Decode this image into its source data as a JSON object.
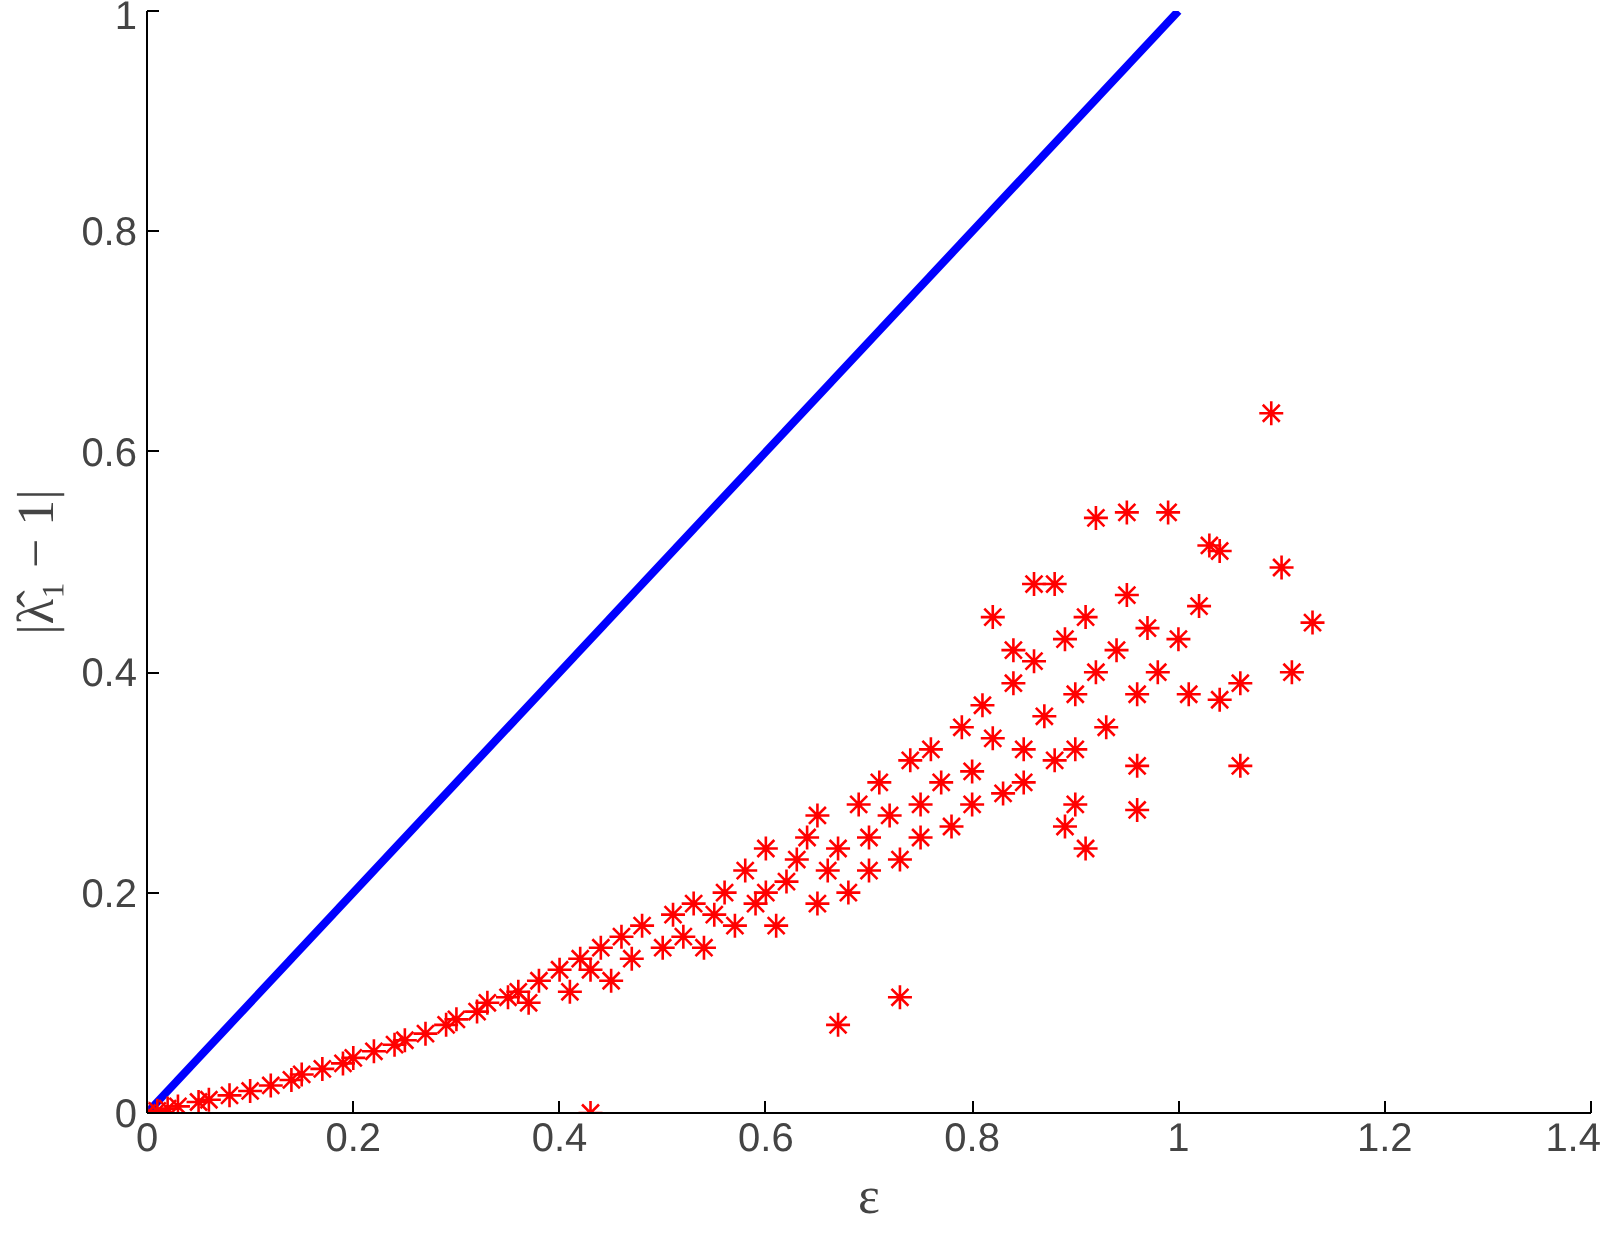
{
  "chart_data": {
    "type": "scatter",
    "xlabel": "ε",
    "ylabel": "|λ̂₁ − 1|",
    "xlim": [
      0,
      1.4
    ],
    "ylim": [
      0,
      1
    ],
    "xticks": [
      0,
      0.2,
      0.4,
      0.6,
      0.8,
      1,
      1.2,
      1.4
    ],
    "yticks": [
      0,
      0.2,
      0.4,
      0.6,
      0.8,
      1
    ],
    "grid": false,
    "series": [
      {
        "type": "line",
        "color": "#0000ff",
        "x": [
          0,
          1
        ],
        "values": [
          0,
          1
        ],
        "line_style": "solid"
      },
      {
        "color": "#ff0000",
        "marker": "cross",
        "x": [
          0,
          0.01,
          0.02,
          0.03,
          0.05,
          0.06,
          0.08,
          0.1,
          0.12,
          0.14,
          0.15,
          0.17,
          0.19,
          0.2,
          0.22,
          0.24,
          0.25,
          0.27,
          0.29,
          0.3,
          0.32,
          0.33,
          0.35,
          0.36,
          0.37,
          0.38,
          0.4,
          0.41,
          0.42,
          0.43,
          0.44,
          0.45,
          0.46,
          0.47,
          0.48,
          0.5,
          0.51,
          0.52,
          0.53,
          0.54,
          0.55,
          0.56,
          0.57,
          0.58,
          0.59,
          0.6,
          0.6,
          0.61,
          0.62,
          0.63,
          0.64,
          0.65,
          0.65,
          0.66,
          0.67,
          0.68,
          0.69,
          0.7,
          0.7,
          0.71,
          0.72,
          0.73,
          0.74,
          0.75,
          0.75,
          0.76,
          0.77,
          0.78,
          0.79,
          0.8,
          0.8,
          0.81,
          0.82,
          0.83,
          0.84,
          0.85,
          0.85,
          0.86,
          0.87,
          0.88,
          0.89,
          0.9,
          0.9,
          0.91,
          0.92,
          0.93,
          0.94,
          0.95,
          0.96,
          0.97,
          0.98,
          1.0,
          1.01,
          1.02,
          0.43,
          0.67,
          0.73,
          1.09,
          1.1,
          1.13,
          1.11,
          1.06,
          1.06,
          1.04,
          0.91,
          0.9,
          0.96,
          0.96,
          0.95,
          0.99,
          1.03,
          1.04,
          0.92,
          0.88,
          0.86,
          0.89,
          0.84,
          0.82
        ],
        "values": [
          0,
          0.002,
          0.004,
          0.006,
          0.01,
          0.012,
          0.016,
          0.02,
          0.025,
          0.03,
          0.035,
          0.04,
          0.045,
          0.05,
          0.056,
          0.062,
          0.066,
          0.072,
          0.08,
          0.085,
          0.092,
          0.1,
          0.105,
          0.11,
          0.1,
          0.12,
          0.13,
          0.11,
          0.14,
          0.13,
          0.15,
          0.12,
          0.16,
          0.14,
          0.17,
          0.15,
          0.18,
          0.16,
          0.19,
          0.15,
          0.18,
          0.2,
          0.17,
          0.22,
          0.19,
          0.2,
          0.24,
          0.17,
          0.21,
          0.23,
          0.25,
          0.19,
          0.27,
          0.22,
          0.24,
          0.2,
          0.28,
          0.25,
          0.22,
          0.3,
          0.27,
          0.23,
          0.32,
          0.28,
          0.25,
          0.33,
          0.3,
          0.26,
          0.35,
          0.31,
          0.28,
          0.37,
          0.34,
          0.29,
          0.39,
          0.33,
          0.3,
          0.41,
          0.36,
          0.32,
          0.43,
          0.38,
          0.33,
          0.45,
          0.4,
          0.35,
          0.42,
          0.47,
          0.38,
          0.44,
          0.4,
          0.43,
          0.38,
          0.46,
          0,
          0.08,
          0.105,
          0.635,
          0.495,
          0.445,
          0.4,
          0.315,
          0.39,
          0.375,
          0.24,
          0.28,
          0.315,
          0.275,
          0.545,
          0.545,
          0.515,
          0.51,
          0.54,
          0.48,
          0.48,
          0.26,
          0.42,
          0.45
        ]
      }
    ]
  }
}
